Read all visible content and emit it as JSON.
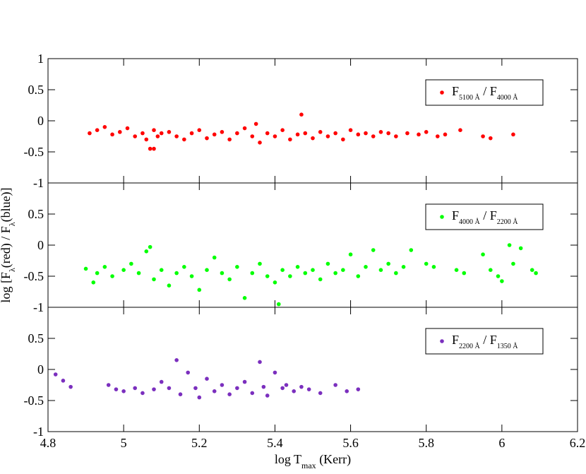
{
  "chart_data": {
    "type": "scatter",
    "xlabel": [
      {
        "text": "log T"
      },
      {
        "text": "max",
        "sub": true
      },
      {
        "text": " (Kerr)"
      }
    ],
    "ylabel": [
      {
        "text": "log [F"
      },
      {
        "text": "λ",
        "sub": true
      },
      {
        "text": "(red) / F"
      },
      {
        "text": "λ",
        "sub": true
      },
      {
        "text": "(blue)]"
      }
    ],
    "xlim": [
      4.8,
      6.2
    ],
    "xticks": [
      4.8,
      5,
      5.2,
      5.4,
      5.6,
      5.8,
      6,
      6.2
    ],
    "panels": [
      {
        "name": [
          {
            "text": "F"
          },
          {
            "text": "5100 Å",
            "sub": true
          },
          {
            "text": " / F"
          },
          {
            "text": "4000 Å",
            "sub": true
          }
        ],
        "color": "#ff0000",
        "ylim": [
          -1,
          1
        ],
        "yticks": [
          -1,
          -0.5,
          0,
          0.5,
          1
        ],
        "x": [
          4.91,
          4.93,
          4.95,
          4.97,
          4.99,
          5.01,
          5.03,
          5.05,
          5.06,
          5.07,
          5.08,
          5.08,
          5.09,
          5.1,
          5.12,
          5.14,
          5.16,
          5.18,
          5.2,
          5.22,
          5.24,
          5.26,
          5.28,
          5.3,
          5.32,
          5.34,
          5.35,
          5.36,
          5.38,
          5.4,
          5.42,
          5.44,
          5.46,
          5.47,
          5.48,
          5.5,
          5.52,
          5.54,
          5.56,
          5.58,
          5.6,
          5.62,
          5.64,
          5.66,
          5.68,
          5.7,
          5.72,
          5.75,
          5.78,
          5.8,
          5.83,
          5.85,
          5.89,
          5.95,
          5.97,
          6.03
        ],
        "y": [
          -0.2,
          -0.15,
          -0.1,
          -0.22,
          -0.18,
          -0.12,
          -0.25,
          -0.2,
          -0.3,
          -0.45,
          -0.15,
          -0.45,
          -0.25,
          -0.2,
          -0.18,
          -0.25,
          -0.3,
          -0.2,
          -0.15,
          -0.28,
          -0.22,
          -0.18,
          -0.3,
          -0.2,
          -0.12,
          -0.25,
          -0.05,
          -0.35,
          -0.2,
          -0.25,
          -0.15,
          -0.3,
          -0.22,
          0.1,
          -0.2,
          -0.28,
          -0.18,
          -0.25,
          -0.2,
          -0.3,
          -0.15,
          -0.22,
          -0.2,
          -0.25,
          -0.18,
          -0.2,
          -0.25,
          -0.2,
          -0.22,
          -0.18,
          -0.25,
          -0.22,
          -0.15,
          -0.25,
          -0.28,
          -0.22
        ]
      },
      {
        "name": [
          {
            "text": "F"
          },
          {
            "text": "4000 Å",
            "sub": true
          },
          {
            "text": " / F"
          },
          {
            "text": "2200 Å",
            "sub": true
          }
        ],
        "color": "#00ff00",
        "ylim": [
          -1,
          1
        ],
        "yticks": [
          -1,
          -0.5,
          0,
          0.5
        ],
        "x": [
          4.9,
          4.92,
          4.93,
          4.95,
          4.97,
          5.0,
          5.02,
          5.04,
          5.06,
          5.07,
          5.08,
          5.1,
          5.12,
          5.14,
          5.16,
          5.18,
          5.2,
          5.22,
          5.24,
          5.26,
          5.28,
          5.3,
          5.32,
          5.34,
          5.36,
          5.38,
          5.4,
          5.41,
          5.42,
          5.44,
          5.46,
          5.48,
          5.5,
          5.52,
          5.54,
          5.56,
          5.58,
          5.6,
          5.62,
          5.64,
          5.66,
          5.68,
          5.7,
          5.72,
          5.74,
          5.76,
          5.8,
          5.82,
          5.88,
          5.9,
          5.95,
          5.97,
          5.99,
          6.0,
          6.02,
          6.03,
          6.05,
          6.08,
          6.09
        ],
        "y": [
          -0.38,
          -0.6,
          -0.45,
          -0.35,
          -0.5,
          -0.4,
          -0.3,
          -0.45,
          -0.1,
          -0.03,
          -0.55,
          -0.4,
          -0.65,
          -0.45,
          -0.35,
          -0.5,
          -0.72,
          -0.4,
          -0.2,
          -0.45,
          -0.55,
          -0.35,
          -0.85,
          -0.45,
          -0.3,
          -0.5,
          -0.6,
          -0.95,
          -0.4,
          -0.5,
          -0.35,
          -0.45,
          -0.4,
          -0.55,
          -0.3,
          -0.45,
          -0.4,
          -0.15,
          -0.5,
          -0.35,
          -0.08,
          -0.4,
          -0.3,
          -0.45,
          -0.35,
          -0.08,
          -0.3,
          -0.35,
          -0.4,
          -0.45,
          -0.15,
          -0.4,
          -0.5,
          -0.58,
          0.0,
          -0.3,
          -0.05,
          -0.4,
          -0.45
        ]
      },
      {
        "name": [
          {
            "text": "F"
          },
          {
            "text": "2200 Å",
            "sub": true
          },
          {
            "text": " / F"
          },
          {
            "text": "1350 Å",
            "sub": true
          }
        ],
        "color": "#7b2fbe",
        "ylim": [
          -1,
          1
        ],
        "yticks": [
          -1,
          -0.5,
          0,
          0.5
        ],
        "x": [
          4.82,
          4.84,
          4.86,
          4.96,
          4.98,
          5.0,
          5.03,
          5.05,
          5.08,
          5.1,
          5.12,
          5.14,
          5.15,
          5.17,
          5.19,
          5.2,
          5.22,
          5.24,
          5.26,
          5.28,
          5.3,
          5.32,
          5.34,
          5.36,
          5.37,
          5.38,
          5.4,
          5.42,
          5.43,
          5.45,
          5.47,
          5.49,
          5.52,
          5.56,
          5.59,
          5.62
        ],
        "y": [
          -0.08,
          -0.18,
          -0.28,
          -0.25,
          -0.32,
          -0.35,
          -0.3,
          -0.38,
          -0.32,
          -0.2,
          -0.3,
          0.15,
          -0.4,
          -0.05,
          -0.3,
          -0.45,
          -0.15,
          -0.35,
          -0.25,
          -0.4,
          -0.3,
          -0.2,
          -0.38,
          0.12,
          -0.28,
          -0.42,
          -0.05,
          -0.3,
          -0.25,
          -0.35,
          -0.28,
          -0.32,
          -0.38,
          -0.25,
          -0.35,
          -0.32
        ]
      }
    ]
  }
}
